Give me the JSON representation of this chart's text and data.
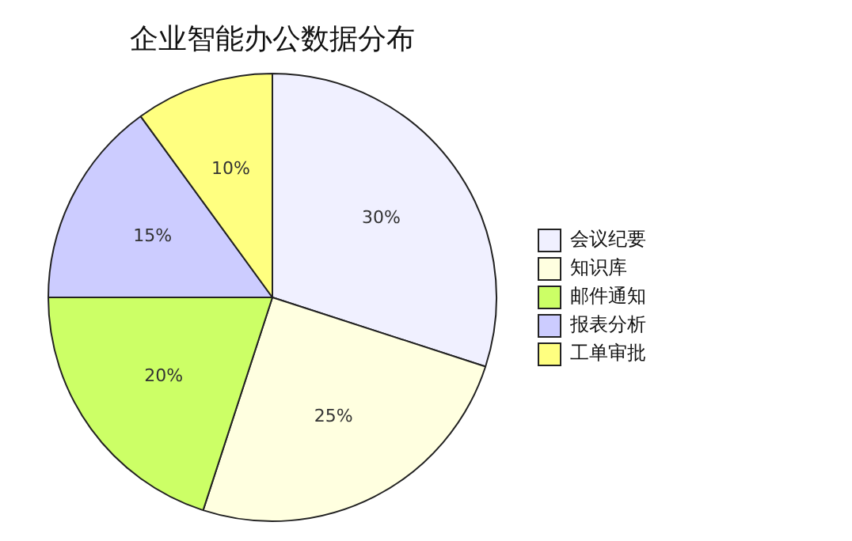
{
  "chart_data": {
    "type": "pie",
    "title": "企业智能办公数据分布",
    "categories": [
      "会议纪要",
      "知识库",
      "邮件通知",
      "报表分析",
      "工单审批"
    ],
    "values": [
      30,
      25,
      20,
      15,
      10
    ],
    "colors": [
      "#f0f0ff",
      "#ffffe0",
      "#ccff66",
      "#ccccff",
      "#ffff80"
    ],
    "value_labels": [
      "30%",
      "25%",
      "20%",
      "15%",
      "10%"
    ],
    "legend": "right"
  }
}
